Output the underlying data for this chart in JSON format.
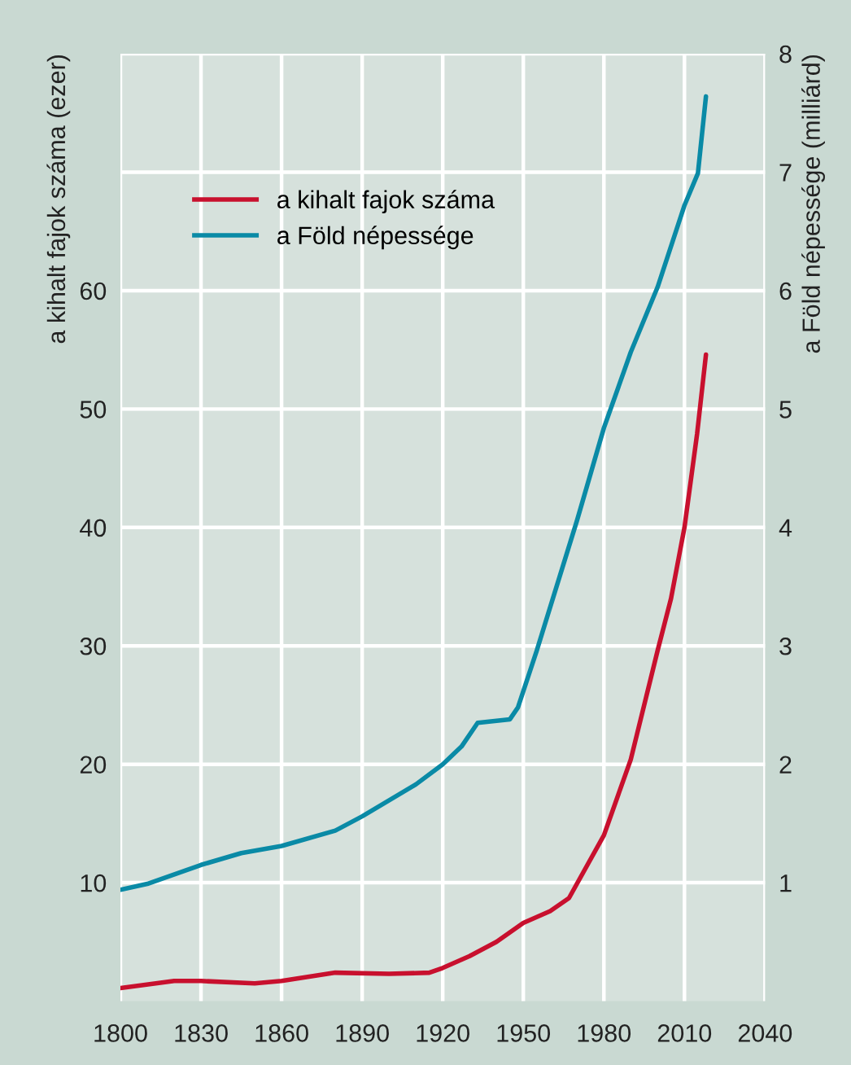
{
  "chart_data": {
    "type": "line",
    "ylabel": "a kihalt fajok száma (ezer)",
    "y2label": "a Föld népessége (milliárd)",
    "xlim": [
      1800,
      2040
    ],
    "xticks": [
      1800,
      1830,
      1860,
      1890,
      1920,
      1950,
      1980,
      2010,
      2040
    ],
    "ylim": [
      0,
      80
    ],
    "yticks": [
      10,
      20,
      30,
      40,
      50,
      60,
      {
        "value": 70,
        "label": null
      },
      {
        "value": 80,
        "label": null
      }
    ],
    "y2lim": [
      0,
      8
    ],
    "y2ticks": [
      1,
      2,
      3,
      4,
      5,
      6,
      7,
      8
    ],
    "grid": true,
    "legend": "top left",
    "series": [
      {
        "name": "a kihalt fajok száma",
        "color": "#c8102e",
        "x": [
          1800,
          1820,
          1830,
          1850,
          1860,
          1880,
          1900,
          1915,
          1920,
          1930,
          1940,
          1950,
          1960,
          1967,
          1980,
          1990,
          2000,
          2005,
          2010,
          2014.7,
          2018
        ],
        "values": [
          1.1,
          1.7,
          1.7,
          1.5,
          1.7,
          2.4,
          2.3,
          2.4,
          2.8,
          3.8,
          5.0,
          6.6,
          7.6,
          8.7,
          14,
          20.4,
          29.6,
          34,
          40,
          47.9,
          54.6
        ]
      },
      {
        "name": "a Föld népessége",
        "color": "#0a8aa6",
        "axis": "y2",
        "x": [
          1800,
          1810,
          1830,
          1845,
          1860,
          1880,
          1890,
          1910,
          1920,
          1927,
          1933,
          1945,
          1948,
          1955,
          1970,
          1980,
          1990,
          2000,
          2010,
          2015,
          2018
        ],
        "values": [
          0.94,
          0.99,
          1.15,
          1.25,
          1.31,
          1.44,
          1.56,
          1.83,
          2.0,
          2.15,
          2.35,
          2.38,
          2.48,
          2.96,
          4.06,
          4.84,
          5.48,
          6.03,
          6.72,
          6.99,
          7.64
        ]
      }
    ]
  }
}
